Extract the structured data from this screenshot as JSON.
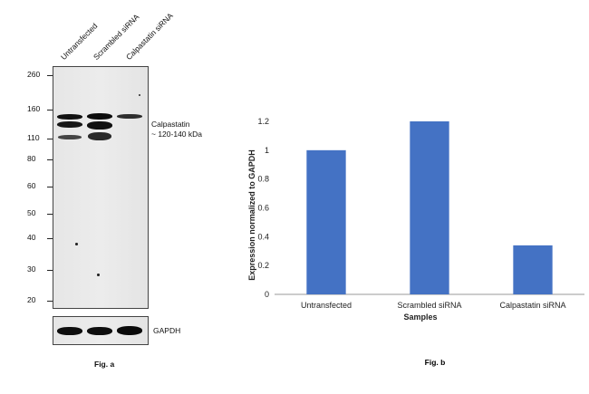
{
  "fig_a": {
    "lanes": [
      "Untransfected",
      "Scrambled siRNA",
      "Calpastatin siRNA"
    ],
    "mw_markers": [
      "260",
      "160",
      "110",
      "80",
      "60",
      "50",
      "40",
      "30",
      "20"
    ],
    "target_label": "Calpastatin",
    "target_size": "~ 120-140 kDa",
    "loading_control": "GAPDH",
    "caption": "Fig. a"
  },
  "chart_data": {
    "type": "bar",
    "categories": [
      "Untransfected",
      "Scrambled siRNA",
      "Calpastatin siRNA"
    ],
    "values": [
      1.0,
      1.2,
      0.34
    ],
    "title": "",
    "xlabel": "Samples",
    "ylabel": "Expression normalized to GAPDH",
    "ylim": [
      0,
      1.2
    ],
    "yticks": [
      "0",
      "0.2",
      "0.4",
      "0.6",
      "0.8",
      "1",
      "1.2"
    ],
    "bar_color": "#4472c4",
    "grid": false,
    "legend": "none",
    "caption": "Fig. b"
  }
}
